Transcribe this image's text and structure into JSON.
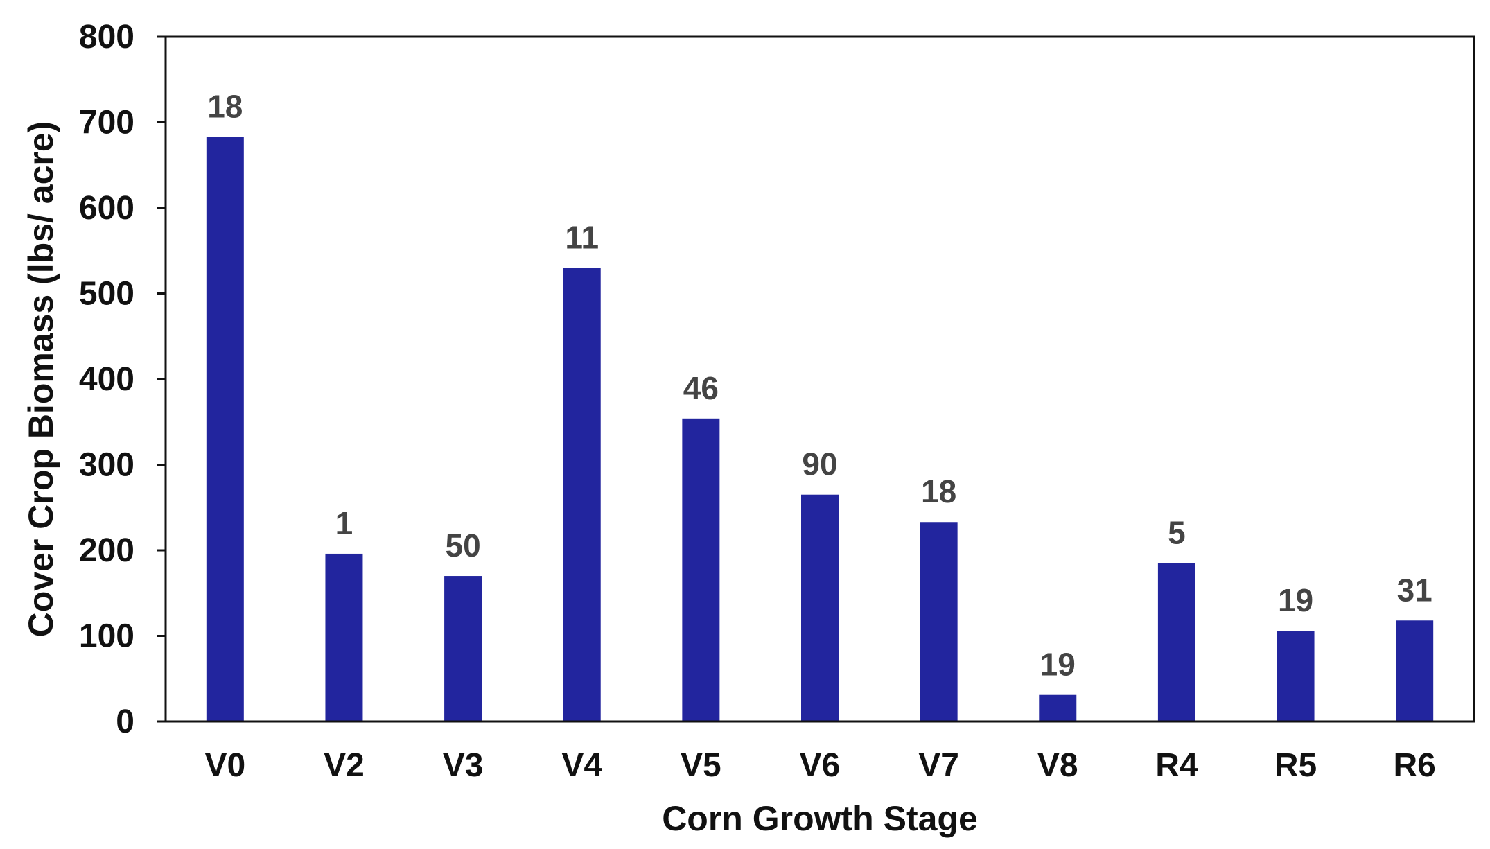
{
  "chart_data": {
    "type": "bar",
    "title": "",
    "xlabel": "Corn Growth Stage",
    "ylabel": "Cover Crop Biomass (lbs/ acre)",
    "ylim": [
      0,
      800
    ],
    "yticks": [
      0,
      100,
      200,
      300,
      400,
      500,
      600,
      700,
      800
    ],
    "categories": [
      "V0",
      "V2",
      "V3",
      "V4",
      "V5",
      "V6",
      "V7",
      "V8",
      "R4",
      "R5",
      "R6"
    ],
    "values": [
      683,
      196,
      170,
      530,
      354,
      265,
      233,
      31,
      185,
      106,
      118
    ],
    "data_labels": [
      "18",
      "1",
      "50",
      "11",
      "46",
      "90",
      "18",
      "19",
      "5",
      "19",
      "31"
    ],
    "bar_color": "#22259e",
    "grid": false,
    "legend": "none"
  }
}
